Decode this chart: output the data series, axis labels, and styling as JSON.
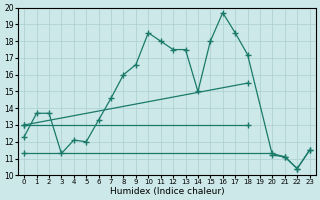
{
  "xlabel": "Humidex (Indice chaleur)",
  "xlim": [
    -0.5,
    23.5
  ],
  "ylim": [
    10,
    20
  ],
  "xticks": [
    0,
    1,
    2,
    3,
    4,
    5,
    6,
    7,
    8,
    9,
    10,
    11,
    12,
    13,
    14,
    15,
    16,
    17,
    18,
    19,
    20,
    21,
    22,
    23
  ],
  "yticks": [
    10,
    11,
    12,
    13,
    14,
    15,
    16,
    17,
    18,
    19,
    20
  ],
  "bg_color": "#cce8e8",
  "grid_color": "#aacfcf",
  "line_color": "#1a7a6a",
  "line1_x": [
    0,
    1,
    2,
    3,
    4,
    5,
    6,
    7,
    8,
    9,
    10,
    11,
    12,
    13,
    14,
    15,
    16,
    17,
    18,
    20,
    21,
    22,
    23
  ],
  "line1_y": [
    12.3,
    13.7,
    13.7,
    11.3,
    12.1,
    12.0,
    13.3,
    14.6,
    16.0,
    16.6,
    18.5,
    18.0,
    17.5,
    17.5,
    15.0,
    18.0,
    19.7,
    18.5,
    17.2,
    11.2,
    11.1,
    10.4,
    11.5
  ],
  "line2_x": [
    0,
    18
  ],
  "line2_y": [
    13.0,
    15.5
  ],
  "line3_x": [
    0,
    18
  ],
  "line3_y": [
    13.0,
    13.0
  ],
  "line4_x": [
    0,
    20,
    21,
    22,
    23
  ],
  "line4_y": [
    11.3,
    11.3,
    11.1,
    10.4,
    11.5
  ]
}
